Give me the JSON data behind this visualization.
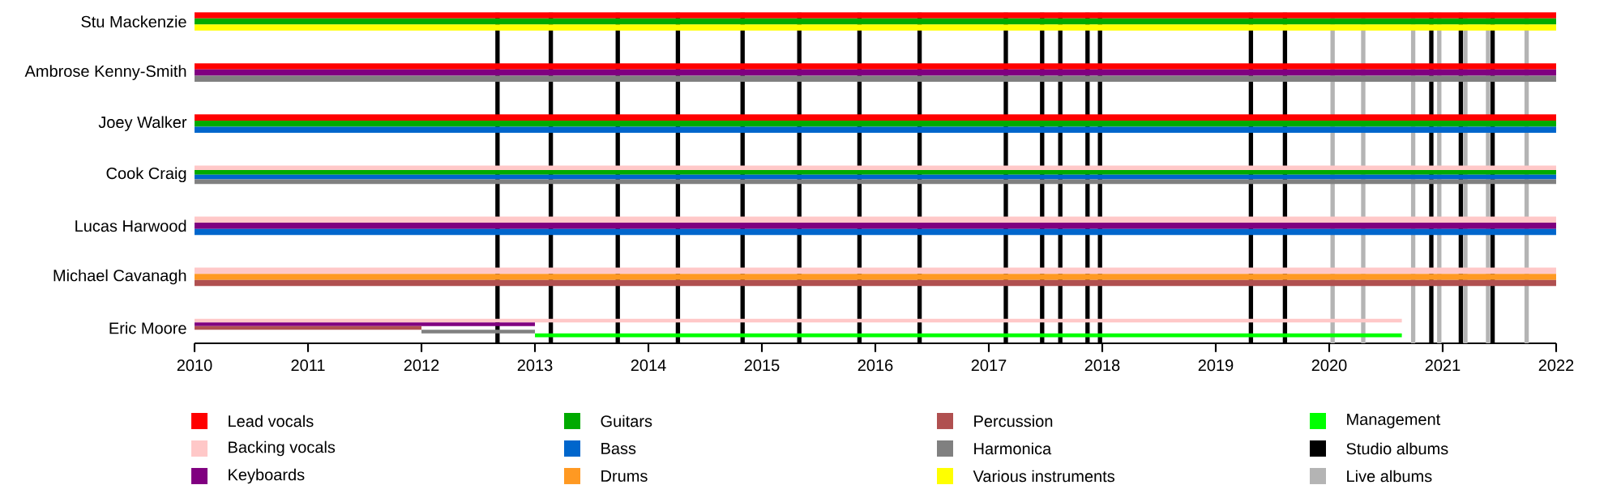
{
  "chart_data": {
    "type": "bar",
    "orientation": "horizontal",
    "legend": "bottom",
    "categories": [
      "Stu Mackenzie",
      "Ambrose Kenny-Smith",
      "Joey Walker",
      "Cook Craig",
      "Lucas Harwood",
      "Michael Cavanagh",
      "Eric Moore"
    ],
    "series": [
      {
        "name": "Lead vocals",
        "color": "#ff0000",
        "base": [
          2010,
          2010,
          2010,
          null,
          null,
          null,
          null
        ],
        "values": [
          12,
          12,
          12,
          null,
          null,
          null,
          null
        ]
      },
      {
        "name": "Backing vocals",
        "color": "#ffc8c8",
        "base": [
          null,
          null,
          null,
          2010,
          2010,
          2010,
          2010
        ],
        "values": [
          null,
          null,
          null,
          12,
          12,
          12,
          10.64
        ]
      },
      {
        "name": "Keyboards",
        "color": "#800080",
        "base": [
          null,
          2010,
          null,
          null,
          2010,
          null,
          2010
        ],
        "values": [
          null,
          12,
          null,
          null,
          12,
          null,
          3
        ]
      },
      {
        "name": "Guitars",
        "color": "#00aa00",
        "base": [
          2010,
          null,
          2010,
          2010,
          null,
          null,
          null
        ],
        "values": [
          12,
          null,
          12,
          12,
          null,
          null,
          null
        ]
      },
      {
        "name": "Bass",
        "color": "#0066cc",
        "base": [
          null,
          null,
          2010,
          2010,
          2010,
          null,
          null
        ],
        "values": [
          null,
          null,
          12,
          12,
          12,
          null,
          null
        ]
      },
      {
        "name": "Drums",
        "color": "#ff9922",
        "base": [
          null,
          null,
          null,
          null,
          null,
          2010,
          null
        ],
        "values": [
          null,
          null,
          null,
          null,
          null,
          12,
          null
        ]
      },
      {
        "name": "Percussion",
        "color": "#b05050",
        "base": [
          null,
          null,
          null,
          null,
          null,
          2010,
          2010
        ],
        "values": [
          null,
          null,
          null,
          null,
          null,
          12,
          2
        ]
      },
      {
        "name": "Harmonica",
        "color": "#808080",
        "base": [
          null,
          2010,
          null,
          2010,
          null,
          null,
          2012
        ],
        "values": [
          null,
          12,
          null,
          12,
          null,
          null,
          1
        ]
      },
      {
        "name": "Various instruments",
        "color": "#ffff00",
        "base": [
          2010,
          null,
          null,
          null,
          null,
          null,
          null
        ],
        "values": [
          12,
          null,
          null,
          null,
          null,
          null,
          null
        ]
      },
      {
        "name": "Management",
        "color": "#00ff00",
        "base": [
          null,
          null,
          null,
          null,
          null,
          null,
          2013
        ],
        "values": [
          null,
          null,
          null,
          null,
          null,
          null,
          7.64
        ]
      }
    ],
    "xlim": [
      2010,
      2022
    ],
    "xticks": [
      2010,
      2011,
      2012,
      2013,
      2014,
      2015,
      2016,
      2017,
      2018,
      2019,
      2020,
      2021,
      2022
    ],
    "ref_lines": [
      {
        "axis": "x",
        "value": 2012.67,
        "color": "#000000"
      },
      {
        "axis": "x",
        "value": 2013.14,
        "color": "#000000"
      },
      {
        "axis": "x",
        "value": 2013.73,
        "color": "#000000"
      },
      {
        "axis": "x",
        "value": 2014.26,
        "color": "#000000"
      },
      {
        "axis": "x",
        "value": 2014.83,
        "color": "#000000"
      },
      {
        "axis": "x",
        "value": 2015.33,
        "color": "#000000"
      },
      {
        "axis": "x",
        "value": 2015.86,
        "color": "#000000"
      },
      {
        "axis": "x",
        "value": 2016.39,
        "color": "#000000"
      },
      {
        "axis": "x",
        "value": 2017.15,
        "color": "#000000"
      },
      {
        "axis": "x",
        "value": 2017.47,
        "color": "#000000"
      },
      {
        "axis": "x",
        "value": 2017.63,
        "color": "#000000"
      },
      {
        "axis": "x",
        "value": 2017.87,
        "color": "#000000"
      },
      {
        "axis": "x",
        "value": 2017.98,
        "color": "#000000"
      },
      {
        "axis": "x",
        "value": 2019.31,
        "color": "#000000"
      },
      {
        "axis": "x",
        "value": 2019.61,
        "color": "#000000"
      },
      {
        "axis": "x",
        "value": 2020.9,
        "color": "#000000"
      },
      {
        "axis": "x",
        "value": 2021.16,
        "color": "#000000"
      },
      {
        "axis": "x",
        "value": 2021.44,
        "color": "#000000"
      },
      {
        "axis": "x",
        "value": 2020.03,
        "color": "#b4b4b4"
      },
      {
        "axis": "x",
        "value": 2020.3,
        "color": "#b4b4b4"
      },
      {
        "axis": "x",
        "value": 2020.74,
        "color": "#b4b4b4"
      },
      {
        "axis": "x",
        "value": 2020.97,
        "color": "#b4b4b4"
      },
      {
        "axis": "x",
        "value": 2021.2,
        "color": "#b4b4b4"
      },
      {
        "axis": "x",
        "value": 2021.4,
        "color": "#b4b4b4"
      },
      {
        "axis": "x",
        "value": 2021.74,
        "color": "#b4b4b4"
      }
    ],
    "annotations": [
      "Studio albums",
      "Live albums"
    ]
  }
}
